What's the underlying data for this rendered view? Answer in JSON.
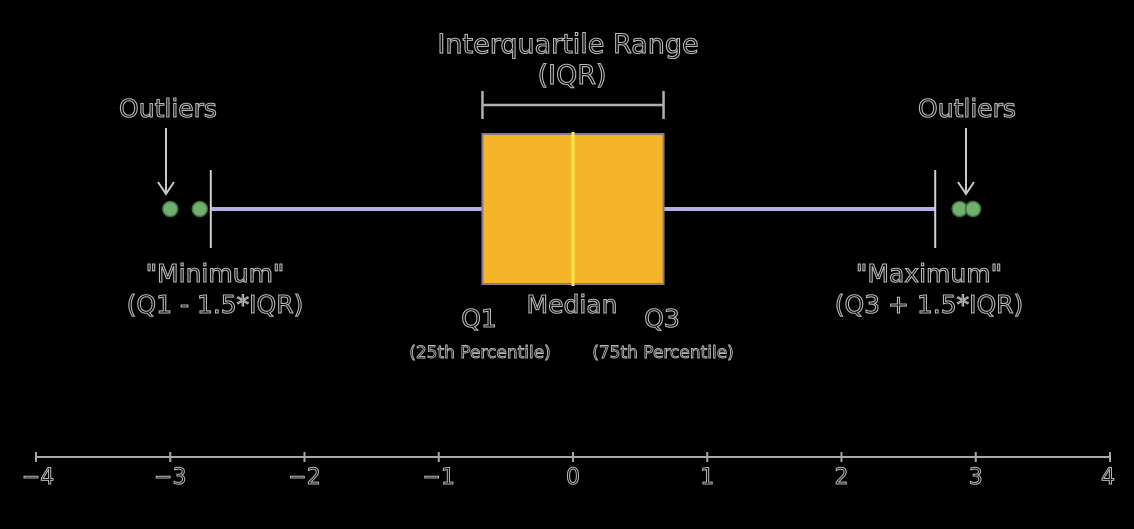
{
  "labels": {
    "iqr_title": "Interquartile Range",
    "iqr_abbrev": "(IQR)",
    "outliers_left": "Outliers",
    "outliers_right": "Outliers",
    "minimum": "\"Minimum\"",
    "minimum_formula": "(Q1 - 1.5*IQR)",
    "maximum": "\"Maximum\"",
    "maximum_formula": "(Q3 + 1.5*IQR)",
    "q1": "Q1",
    "q1_note": "(25th Percentile)",
    "median": "Median",
    "q3": "Q3",
    "q3_note": "(75th Percentile)"
  },
  "colors": {
    "box_fill": "#f5b529",
    "box_stroke": "#8a7a8a",
    "median_line": "#ffe84d",
    "whisker": "#b3aee6",
    "outlier": "#6fb06f",
    "axis": "#a8a8a8",
    "text_outline": "#b8b8b8"
  },
  "boxplot": {
    "q1": -0.6745,
    "median": 0,
    "q3": 0.6745,
    "whisker_min": -2.698,
    "whisker_max": 2.698,
    "outliers": [
      -3.0,
      -2.78,
      2.88,
      2.98
    ]
  },
  "axis": {
    "min": -4,
    "max": 4,
    "ticks": [
      -4,
      -3,
      -2,
      -1,
      0,
      1,
      2,
      3,
      4
    ],
    "tick_labels": [
      "−4",
      "−3",
      "−2",
      "−1",
      "0",
      "1",
      "2",
      "3",
      "4"
    ]
  }
}
